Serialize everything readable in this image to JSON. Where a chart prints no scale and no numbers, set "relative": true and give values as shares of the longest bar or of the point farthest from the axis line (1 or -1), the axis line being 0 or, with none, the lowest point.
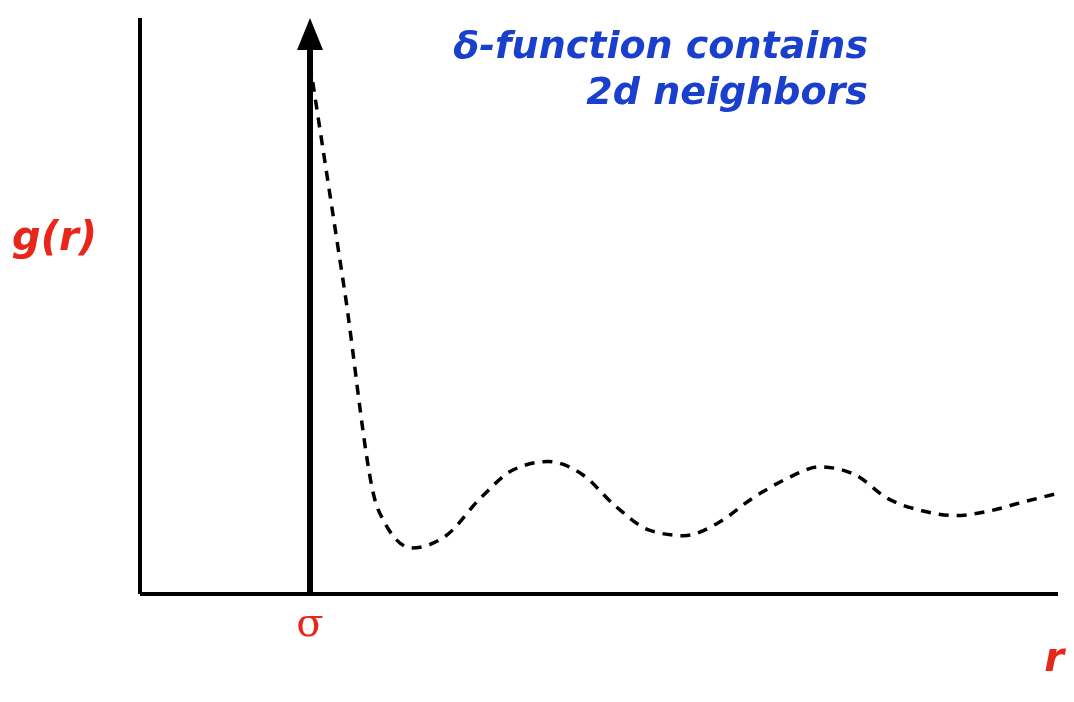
{
  "chart_data": {
    "type": "line",
    "relative": true,
    "xlabel": "r",
    "ylabel": "g(r)",
    "categories": [
      null,
      null,
      null,
      null,
      null,
      null,
      null,
      null,
      null,
      null,
      null,
      null,
      null,
      null,
      null,
      null,
      null,
      null,
      null,
      null,
      null,
      null,
      null,
      null,
      null,
      null,
      null,
      null
    ],
    "series": [
      {
        "color": "#000000",
        "values": [
          null,
          null,
          null,
          null,
          null,
          1,
          0.58,
          0.16,
          0.087,
          0.11,
          0.18,
          0.235,
          0.25,
          0.226,
          0.165,
          0.12,
          0.11,
          0.134,
          0.18,
          0.217,
          0.24,
          0.226,
          0.18,
          0.157,
          0.148,
          0.157,
          0.174,
          0.19
        ]
      }
    ],
    "line_style": "dashed",
    "marker": "none",
    "ref_lines": [
      {
        "axis": "x",
        "label": "σ",
        "color": "#000000"
      }
    ],
    "annotations": [
      "δ-function contains 2d neighbors"
    ]
  }
}
